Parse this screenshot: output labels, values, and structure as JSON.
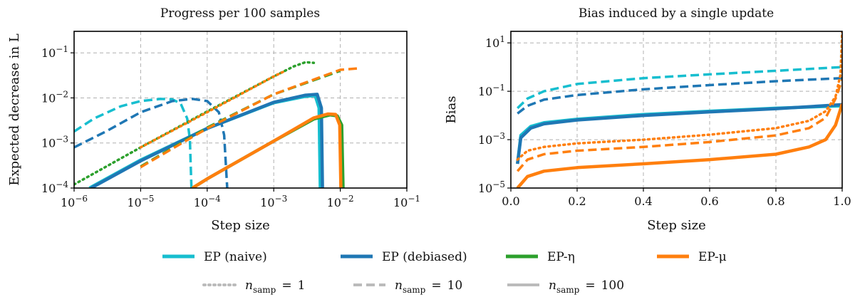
{
  "chart_data": [
    {
      "type": "line",
      "title": "Progress per 100 samples",
      "xlabel": "Step size",
      "ylabel": "Expected decrease in L",
      "xscale": "log",
      "yscale": "log",
      "xlim": [
        1e-06,
        0.1
      ],
      "ylim": [
        0.0001,
        0.3
      ],
      "grid": true,
      "xticks": [
        {
          "v": 1e-06,
          "b": "10",
          "e": "−6"
        },
        {
          "v": 1e-05,
          "b": "10",
          "e": "−5"
        },
        {
          "v": 0.0001,
          "b": "10",
          "e": "−4"
        },
        {
          "v": 0.001,
          "b": "10",
          "e": "−3"
        },
        {
          "v": 0.01,
          "b": "10",
          "e": "−2"
        },
        {
          "v": 0.1,
          "b": "10",
          "e": "−1"
        }
      ],
      "yticks": [
        {
          "v": 0.0001,
          "b": "10",
          "e": "−4"
        },
        {
          "v": 0.001,
          "b": "10",
          "e": "−3"
        },
        {
          "v": 0.01,
          "b": "10",
          "e": "−2"
        },
        {
          "v": 0.1,
          "b": "10",
          "e": "−1"
        }
      ],
      "series": [
        {
          "name": "EP (naive)",
          "n_samp": 1,
          "color": "#17becf",
          "style": "dotted",
          "points": []
        },
        {
          "name": "EP (naive)",
          "n_samp": 10,
          "color": "#17becf",
          "style": "dashed",
          "points": [
            [
              1e-06,
              0.0018
            ],
            [
              2e-06,
              0.0035
            ],
            [
              5e-06,
              0.0065
            ],
            [
              1e-05,
              0.0085
            ],
            [
              2e-05,
              0.0095
            ],
            [
              3e-05,
              0.0093
            ],
            [
              4e-05,
              0.0075
            ],
            [
              5e-05,
              0.0035
            ],
            [
              5.5e-05,
              0.0012
            ],
            [
              5.8e-05,
              0.0001
            ]
          ]
        },
        {
          "name": "EP (naive)",
          "n_samp": 100,
          "color": "#17becf",
          "style": "solid",
          "points": [
            [
              1.7e-06,
              0.0001
            ],
            [
              1e-05,
              0.00042
            ],
            [
              0.0001,
              0.0021
            ],
            [
              0.001,
              0.0078
            ],
            [
              0.003,
              0.0108
            ],
            [
              0.0042,
              0.0112
            ],
            [
              0.0048,
              0.006
            ],
            [
              0.005,
              0.0001
            ]
          ]
        },
        {
          "name": "EP (debiased)",
          "n_samp": 1,
          "color": "#1f77b4",
          "style": "dotted",
          "points": []
        },
        {
          "name": "EP (debiased)",
          "n_samp": 10,
          "color": "#1f77b4",
          "style": "dashed",
          "points": [
            [
              1e-06,
              0.0008
            ],
            [
              3e-06,
              0.0018
            ],
            [
              1e-05,
              0.0048
            ],
            [
              3e-05,
              0.0085
            ],
            [
              6e-05,
              0.0095
            ],
            [
              0.0001,
              0.0085
            ],
            [
              0.00015,
              0.0048
            ],
            [
              0.00018,
              0.0015
            ],
            [
              0.0002,
              0.0001
            ]
          ]
        },
        {
          "name": "EP (debiased)",
          "n_samp": 100,
          "color": "#1f77b4",
          "style": "solid",
          "points": [
            [
              1.8e-06,
              0.0001
            ],
            [
              1e-05,
              0.0004
            ],
            [
              0.0001,
              0.0021
            ],
            [
              0.001,
              0.008
            ],
            [
              0.003,
              0.0115
            ],
            [
              0.0045,
              0.012
            ],
            [
              0.0052,
              0.006
            ],
            [
              0.0054,
              0.0001
            ]
          ]
        },
        {
          "name": "EP-η",
          "n_samp": 1,
          "color": "#2ca02c",
          "style": "dotted",
          "points": [
            [
              1e-06,
              0.00012
            ],
            [
              1e-05,
              0.0008
            ],
            [
              0.0001,
              0.005
            ],
            [
              0.001,
              0.03
            ],
            [
              0.002,
              0.05
            ],
            [
              0.003,
              0.062
            ],
            [
              0.004,
              0.06
            ]
          ]
        },
        {
          "name": "EP-η",
          "n_samp": 10,
          "color": "#2ca02c",
          "style": "dashed",
          "points": [
            [
              1e-05,
              0.0003
            ],
            [
              0.0001,
              0.0022
            ],
            [
              0.001,
              0.012
            ],
            [
              0.01,
              0.04
            ]
          ]
        },
        {
          "name": "EP-η",
          "n_samp": 100,
          "color": "#2ca02c",
          "style": "solid",
          "points": [
            [
              6e-05,
              0.0001
            ],
            [
              0.0001,
              0.00016
            ],
            [
              0.001,
              0.0011
            ],
            [
              0.004,
              0.0034
            ],
            [
              0.007,
              0.0042
            ],
            [
              0.009,
              0.004
            ],
            [
              0.0105,
              0.0025
            ],
            [
              0.011,
              0.0001
            ]
          ]
        },
        {
          "name": "EP-μ",
          "n_samp": 1,
          "color": "#ff7f0e",
          "style": "dotted",
          "points": [
            [
              1e-05,
              0.0008
            ],
            [
              0.0001,
              0.0048
            ],
            [
              0.001,
              0.03
            ],
            [
              0.0015,
              0.04
            ]
          ]
        },
        {
          "name": "EP-μ",
          "n_samp": 10,
          "color": "#ff7f0e",
          "style": "dashed",
          "points": [
            [
              1e-05,
              0.00029
            ],
            [
              0.0001,
              0.0021
            ],
            [
              0.001,
              0.012
            ],
            [
              0.01,
              0.042
            ],
            [
              0.018,
              0.045
            ]
          ]
        },
        {
          "name": "EP-μ",
          "n_samp": 100,
          "color": "#ff7f0e",
          "style": "solid",
          "points": [
            [
              6e-05,
              0.0001
            ],
            [
              0.0001,
              0.00016
            ],
            [
              0.001,
              0.0011
            ],
            [
              0.004,
              0.0036
            ],
            [
              0.0065,
              0.0044
            ],
            [
              0.0085,
              0.0043
            ],
            [
              0.0098,
              0.0025
            ],
            [
              0.0102,
              0.0001
            ]
          ]
        }
      ]
    },
    {
      "type": "line",
      "title": "Bias induced by a single update",
      "xlabel": "Step size",
      "ylabel": "Bias",
      "xscale": "linear",
      "yscale": "log",
      "xlim": [
        0,
        1.0
      ],
      "ylim": [
        1e-05,
        30
      ],
      "grid": true,
      "xticks": [
        {
          "v": 0,
          "t": "0.0"
        },
        {
          "v": 0.2,
          "t": "0.2"
        },
        {
          "v": 0.4,
          "t": "0.4"
        },
        {
          "v": 0.6,
          "t": "0.6"
        },
        {
          "v": 0.8,
          "t": "0.8"
        },
        {
          "v": 1.0,
          "t": "1.0"
        }
      ],
      "yticks": [
        {
          "v": 1e-05,
          "b": "10",
          "e": "−5"
        },
        {
          "v": 0.001,
          "b": "10",
          "e": "−3"
        },
        {
          "v": 0.1,
          "b": "10",
          "e": "−1"
        },
        {
          "v": 10,
          "b": "10",
          "e": "1"
        }
      ],
      "series": [
        {
          "name": "EP (naive)",
          "n_samp": 10,
          "color": "#17becf",
          "style": "dashed",
          "points": [
            [
              0.02,
              0.02
            ],
            [
              0.05,
              0.05
            ],
            [
              0.1,
              0.1
            ],
            [
              0.2,
              0.2
            ],
            [
              0.4,
              0.35
            ],
            [
              0.6,
              0.5
            ],
            [
              0.8,
              0.7
            ],
            [
              1.0,
              1.0
            ]
          ]
        },
        {
          "name": "EP (debiased)",
          "n_samp": 10,
          "color": "#1f77b4",
          "style": "dashed",
          "points": [
            [
              0.02,
              0.012
            ],
            [
              0.05,
              0.025
            ],
            [
              0.1,
              0.045
            ],
            [
              0.2,
              0.07
            ],
            [
              0.4,
              0.12
            ],
            [
              0.6,
              0.18
            ],
            [
              0.8,
              0.26
            ],
            [
              1.0,
              0.35
            ]
          ]
        },
        {
          "name": "EP (naive)",
          "n_samp": 100,
          "color": "#17becf",
          "style": "solid",
          "points": [
            [
              0.02,
              0.0001
            ],
            [
              0.03,
              0.0015
            ],
            [
              0.06,
              0.0035
            ],
            [
              0.1,
              0.005
            ],
            [
              0.2,
              0.007
            ],
            [
              0.4,
              0.011
            ],
            [
              0.6,
              0.015
            ],
            [
              0.8,
              0.02
            ],
            [
              1.0,
              0.025
            ]
          ]
        },
        {
          "name": "EP (debiased)",
          "n_samp": 100,
          "color": "#1f77b4",
          "style": "solid",
          "points": [
            [
              0.02,
              0.0001
            ],
            [
              0.03,
              0.0012
            ],
            [
              0.06,
              0.003
            ],
            [
              0.1,
              0.0045
            ],
            [
              0.2,
              0.0065
            ],
            [
              0.4,
              0.01
            ],
            [
              0.6,
              0.014
            ],
            [
              0.8,
              0.019
            ],
            [
              1.0,
              0.028
            ]
          ]
        },
        {
          "name": "EP-η",
          "n_samp": 100,
          "color": "#2ca02c",
          "style": "solid",
          "points": []
        },
        {
          "name": "EP-μ",
          "n_samp": 1,
          "color": "#ff7f0e",
          "style": "dotted",
          "points": [
            [
              0.02,
              0.00015
            ],
            [
              0.05,
              0.00035
            ],
            [
              0.1,
              0.0005
            ],
            [
              0.2,
              0.0007
            ],
            [
              0.4,
              0.001
            ],
            [
              0.6,
              0.0016
            ],
            [
              0.8,
              0.003
            ],
            [
              0.9,
              0.006
            ],
            [
              0.95,
              0.015
            ],
            [
              0.98,
              0.06
            ],
            [
              0.995,
              0.5
            ],
            [
              1.0,
              30
            ]
          ]
        },
        {
          "name": "EP-μ",
          "n_samp": 10,
          "color": "#ff7f0e",
          "style": "dashed",
          "points": [
            [
              0.02,
              5e-05
            ],
            [
              0.05,
              0.00015
            ],
            [
              0.1,
              0.00025
            ],
            [
              0.2,
              0.00035
            ],
            [
              0.4,
              0.0005
            ],
            [
              0.6,
              0.0008
            ],
            [
              0.8,
              0.0015
            ],
            [
              0.9,
              0.003
            ],
            [
              0.95,
              0.008
            ],
            [
              0.98,
              0.05
            ],
            [
              1.0,
              0.3
            ]
          ]
        },
        {
          "name": "EP-μ",
          "n_samp": 100,
          "color": "#ff7f0e",
          "style": "solid",
          "points": [
            [
              0.02,
              1e-05
            ],
            [
              0.05,
              3e-05
            ],
            [
              0.1,
              5e-05
            ],
            [
              0.2,
              7e-05
            ],
            [
              0.4,
              0.0001
            ],
            [
              0.6,
              0.00015
            ],
            [
              0.8,
              0.00025
            ],
            [
              0.9,
              0.0005
            ],
            [
              0.95,
              0.001
            ],
            [
              0.98,
              0.004
            ],
            [
              1.0,
              0.03
            ]
          ]
        }
      ]
    }
  ],
  "legend": {
    "placement": "bottom-center",
    "method_entries": [
      {
        "label": "EP (naive)",
        "color": "#17becf"
      },
      {
        "label": "EP (debiased)",
        "color": "#1f77b4"
      },
      {
        "label": "EP-η",
        "color": "#2ca02c"
      },
      {
        "label": "EP-μ",
        "color": "#ff7f0e"
      }
    ],
    "sample_entries": [
      {
        "sub": "samp",
        "value": "1",
        "style": "dotted"
      },
      {
        "sub": "samp",
        "value": "10",
        "style": "dashed"
      },
      {
        "sub": "samp",
        "value": "100",
        "style": "solid"
      }
    ],
    "sample_prefix": "n",
    "sample_equals": "=",
    "style_color": "#bbbbbb"
  }
}
